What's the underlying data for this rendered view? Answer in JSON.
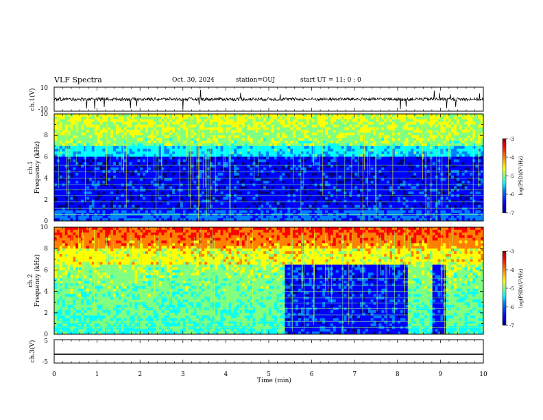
{
  "header": {
    "title": "VLF Spectra",
    "date": "Oct. 30, 2024",
    "station": "station=OUJ",
    "start": "start  UT =   11: 0   : 0"
  },
  "colors": {
    "cmap": [
      "#00007f",
      "#0000ff",
      "#0080ff",
      "#00ffff",
      "#80ff80",
      "#ffff00",
      "#ff8000",
      "#ff0000",
      "#7f0000"
    ]
  },
  "chart_data": [
    {
      "type": "line",
      "ylabel": "ch.1(V)",
      "ylim": [
        -10,
        10
      ],
      "yticks": [
        "10",
        "-10"
      ],
      "xlim": [
        0,
        10
      ],
      "description_level": "noise around 0 with spikes"
    },
    {
      "type": "heatmap",
      "ylabel": "ch.1\nFrequency (kHz)",
      "ylabel_top": "ch.1",
      "ylabel_bottom": "Frequency (kHz)",
      "ylim": [
        0,
        10
      ],
      "yticks": [
        "0",
        "2",
        "4",
        "6",
        "8",
        "10"
      ],
      "xlim": [
        0,
        10
      ],
      "colorbar": {
        "label": "log(PSD)(V²/Hz)",
        "range": [
          -7,
          -3
        ],
        "ticks": [
          "-3",
          "-4",
          "-5",
          "-6",
          "-7"
        ]
      }
    },
    {
      "type": "heatmap",
      "ylabel": "ch.2\nFrequency (kHz)",
      "ylabel_top": "ch.2",
      "ylabel_bottom": "Frequency (kHz)",
      "ylim": [
        0,
        10
      ],
      "yticks": [
        "0",
        "2",
        "4",
        "6",
        "8",
        "10"
      ],
      "xlim": [
        0,
        10
      ],
      "colorbar": {
        "label": "log(PSD)(V²/Hz)",
        "range": [
          -7,
          -3
        ],
        "ticks": [
          "-3",
          "-4",
          "-5",
          "-6",
          "-7"
        ]
      }
    },
    {
      "type": "line",
      "ylabel": "ch.3(V)",
      "ylim": [
        -5,
        5
      ],
      "yticks": [
        "5",
        "0",
        "-5"
      ],
      "xlim": [
        0,
        10
      ],
      "values_constant": -1.2
    }
  ],
  "xaxis": {
    "label": "Time (min)",
    "ticks": [
      "0",
      "1",
      "2",
      "3",
      "4",
      "5",
      "6",
      "7",
      "8",
      "9",
      "10"
    ]
  }
}
